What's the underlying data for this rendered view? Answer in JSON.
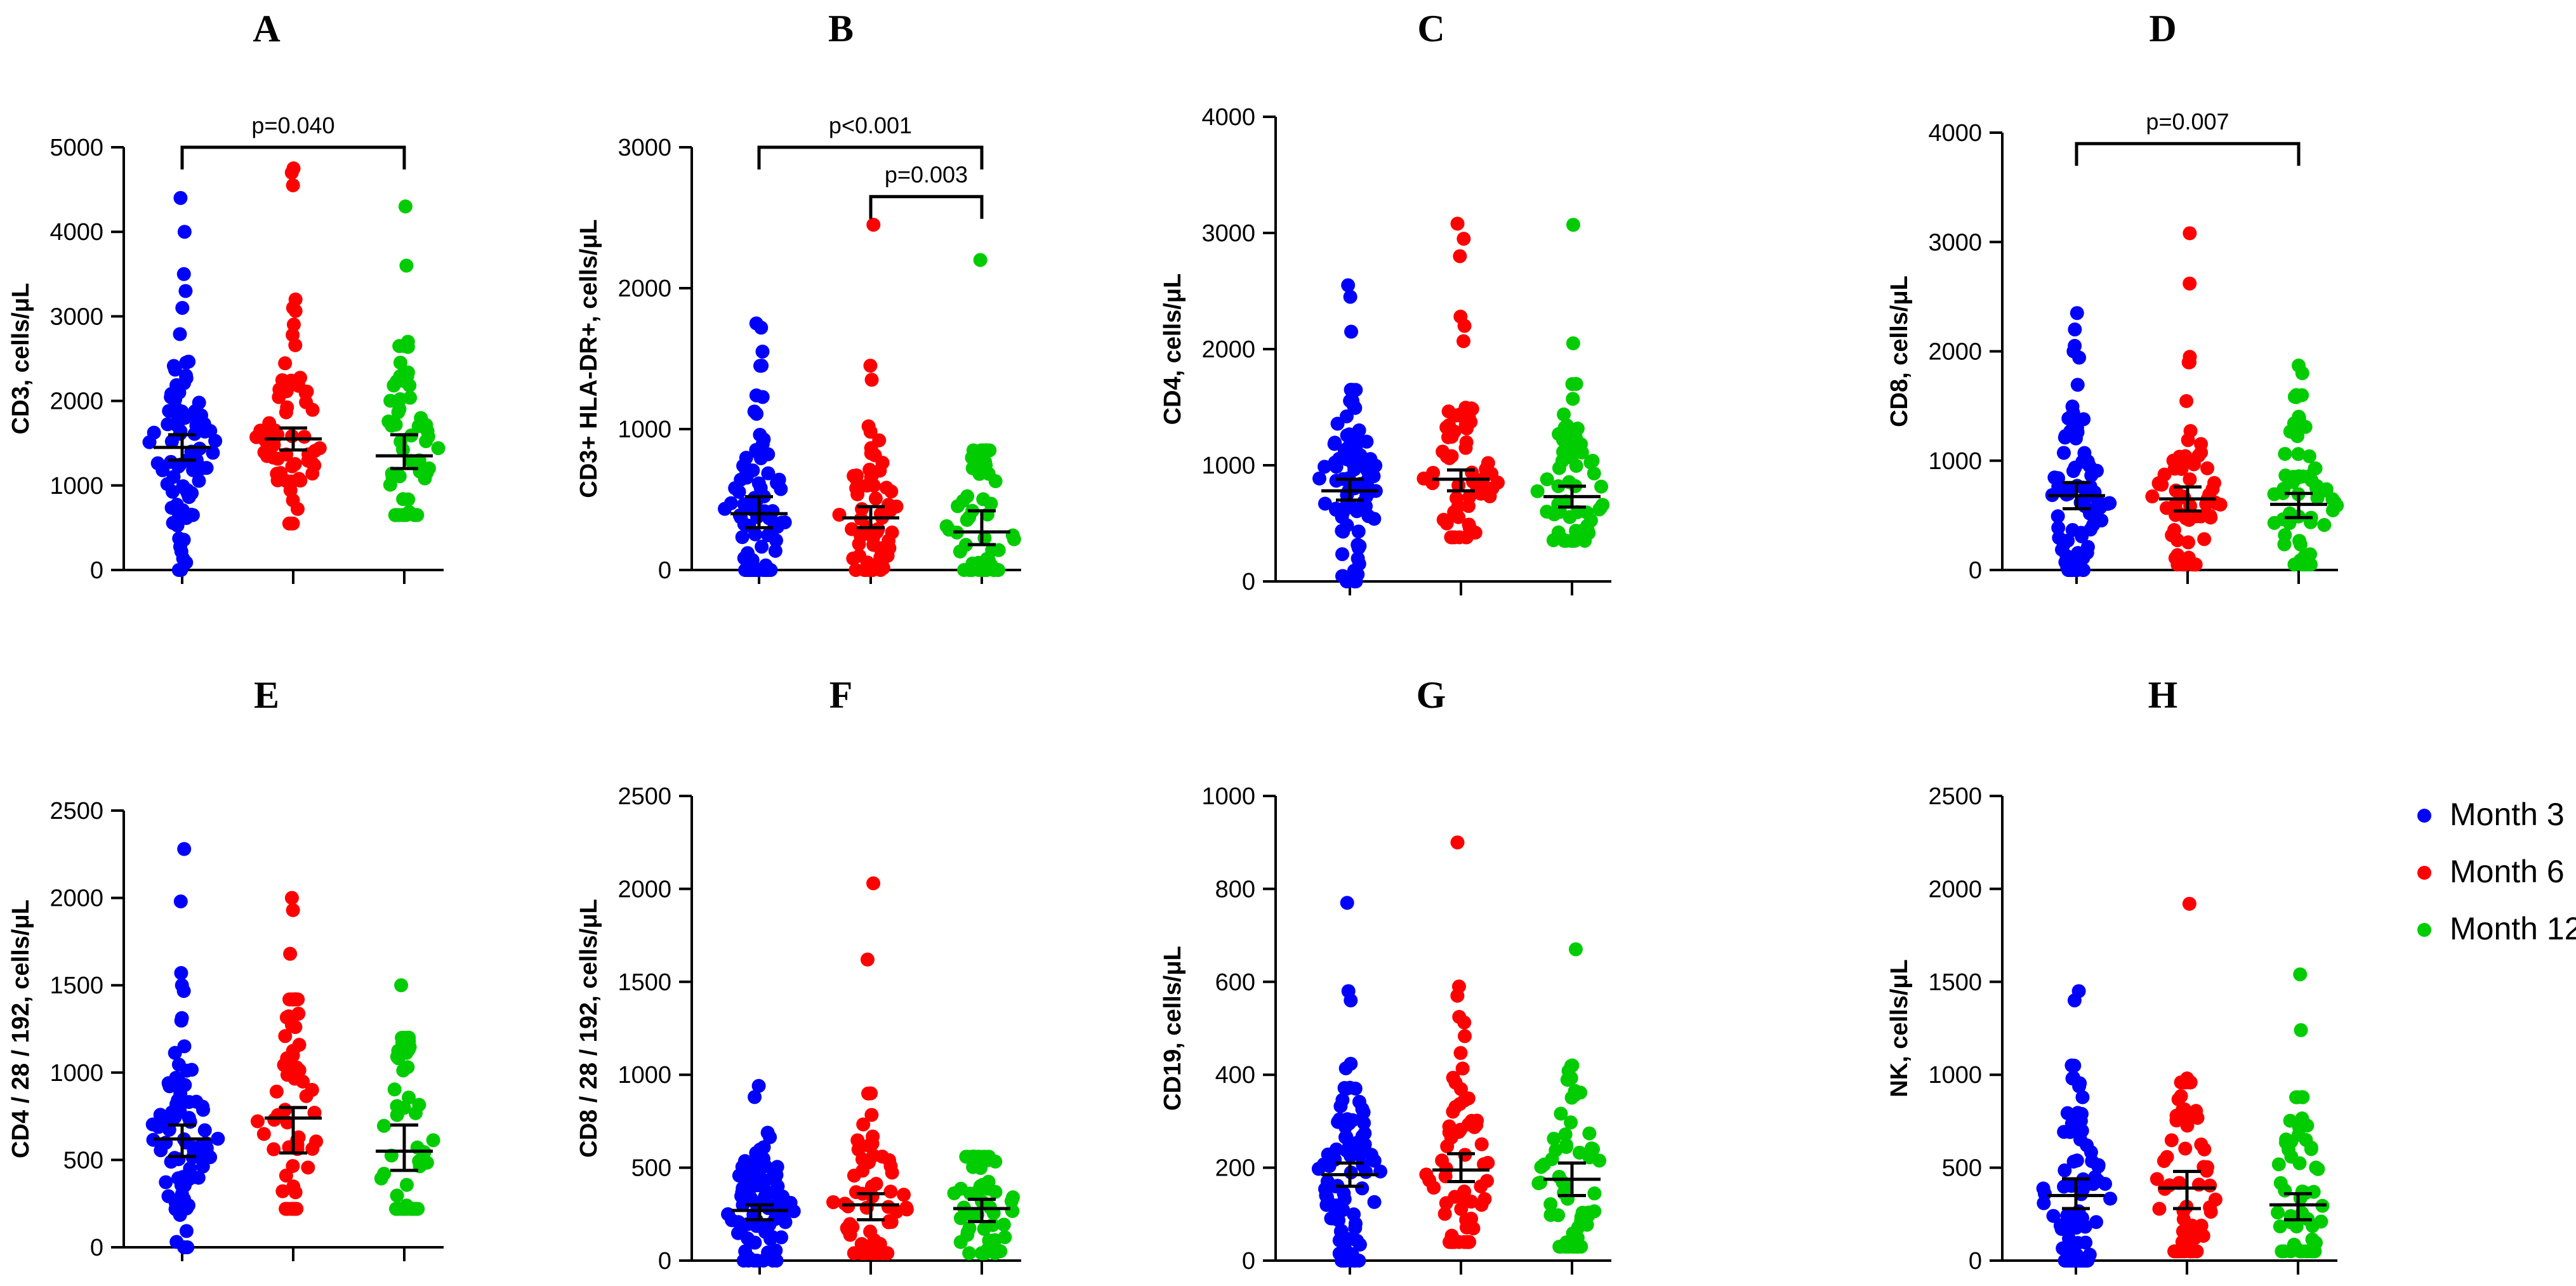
{
  "colors": {
    "Month 3": "#0000ff",
    "Month 6": "#ff0000",
    "Month 12": "#00cc00"
  },
  "legend": [
    {
      "label": "Month 3",
      "color": "#0000ff"
    },
    {
      "label": "Month 6",
      "color": "#ff0000"
    },
    {
      "label": "Month 12",
      "color": "#00cc00"
    }
  ],
  "chart_data": [
    {
      "panel": "A",
      "type": "scatter",
      "ylabel": "CD3, cells/μL",
      "ylim": [
        0,
        5000
      ],
      "yticks": [
        0,
        1000,
        2000,
        3000,
        4000,
        5000
      ],
      "categories": [
        "Month 3",
        "Month 6",
        "Month 12"
      ],
      "series": [
        {
          "name": "Month 3",
          "n": 85,
          "median": 1450,
          "ci": [
            1300,
            1600
          ],
          "range": [
            0,
            4400
          ],
          "outliers": [
            4400,
            4000,
            3500,
            3300,
            3100
          ]
        },
        {
          "name": "Month 6",
          "n": 65,
          "median": 1550,
          "ci": [
            1420,
            1680
          ],
          "range": [
            550,
            4750
          ],
          "outliers": [
            4750,
            4700,
            4550,
            3200,
            3100
          ]
        },
        {
          "name": "Month 12",
          "n": 60,
          "median": 1350,
          "ci": [
            1200,
            1600
          ],
          "range": [
            650,
            4300
          ],
          "outliers": [
            4300,
            3600,
            2700,
            2650
          ]
        }
      ],
      "annotations": [
        {
          "text": "p=0.040",
          "from": 0,
          "to": 2,
          "y": 5000
        }
      ]
    },
    {
      "panel": "B",
      "type": "scatter",
      "ylabel": "CD3+ HLA-DR+, cells/μL",
      "ylim": [
        0,
        3000
      ],
      "yticks": [
        0,
        1000,
        2000,
        3000
      ],
      "categories": [
        "Month 3",
        "Month 6",
        "Month 12"
      ],
      "series": [
        {
          "name": "Month 3",
          "n": 85,
          "median": 400,
          "ci": [
            300,
            520
          ],
          "range": [
            0,
            1750
          ],
          "outliers": [
            1750,
            1720,
            1550,
            1450
          ]
        },
        {
          "name": "Month 6",
          "n": 65,
          "median": 370,
          "ci": [
            300,
            450
          ],
          "range": [
            0,
            2450
          ],
          "outliers": [
            2450,
            1450,
            1350
          ]
        },
        {
          "name": "Month 12",
          "n": 60,
          "median": 270,
          "ci": [
            180,
            420
          ],
          "range": [
            0,
            2200
          ],
          "outliers": [
            2200,
            850
          ]
        }
      ],
      "annotations": [
        {
          "text": "p<0.001",
          "from": 0,
          "to": 2,
          "y": 3000
        },
        {
          "text": "p=0.003",
          "from": 1,
          "to": 2,
          "y": 2650
        }
      ]
    },
    {
      "panel": "C",
      "type": "scatter",
      "ylabel": "CD4, cells/μL",
      "ylim": [
        0,
        4000
      ],
      "yticks": [
        0,
        1000,
        2000,
        3000,
        4000
      ],
      "categories": [
        "Month 3",
        "Month 6",
        "Month 12"
      ],
      "series": [
        {
          "name": "Month 3",
          "n": 85,
          "median": 780,
          "ci": [
            700,
            880
          ],
          "range": [
            0,
            2550
          ],
          "outliers": [
            2550,
            2450,
            2150,
            1650
          ]
        },
        {
          "name": "Month 6",
          "n": 65,
          "median": 880,
          "ci": [
            780,
            960
          ],
          "range": [
            380,
            3080
          ],
          "outliers": [
            3080,
            2950,
            2800,
            2280,
            2200
          ]
        },
        {
          "name": "Month 12",
          "n": 60,
          "median": 730,
          "ci": [
            640,
            820
          ],
          "range": [
            350,
            3070
          ],
          "outliers": [
            3070,
            2050,
            1700
          ]
        }
      ],
      "annotations": []
    },
    {
      "panel": "D",
      "type": "scatter",
      "ylabel": "CD8, cells/μL",
      "ylim": [
        0,
        4000
      ],
      "yticks": [
        0,
        1000,
        2000,
        3000,
        4000
      ],
      "categories": [
        "Month 3",
        "Month 6",
        "Month 12"
      ],
      "series": [
        {
          "name": "Month 3",
          "n": 85,
          "median": 680,
          "ci": [
            560,
            800
          ],
          "range": [
            0,
            2350
          ],
          "outliers": [
            2350,
            2200,
            2050,
            2000
          ]
        },
        {
          "name": "Month 6",
          "n": 65,
          "median": 650,
          "ci": [
            540,
            760
          ],
          "range": [
            50,
            3080
          ],
          "outliers": [
            3080,
            2620,
            1950,
            1900
          ]
        },
        {
          "name": "Month 12",
          "n": 60,
          "median": 600,
          "ci": [
            480,
            700
          ],
          "range": [
            50,
            1870
          ],
          "outliers": [
            1870,
            1800,
            1600
          ]
        }
      ],
      "annotations": [
        {
          "text": "p=0.007",
          "from": 0,
          "to": 2,
          "y": 3900
        }
      ]
    },
    {
      "panel": "E",
      "type": "scatter",
      "ylabel": "CD4 / 28 / 192, cells/μL",
      "ylim": [
        0,
        2500
      ],
      "yticks": [
        0,
        500,
        1000,
        1500,
        2000,
        2500
      ],
      "categories": [
        "Month 3",
        "Month 6",
        "Month 12"
      ],
      "series": [
        {
          "name": "Month 3",
          "n": 85,
          "median": 620,
          "ci": [
            520,
            700
          ],
          "range": [
            0,
            2280
          ],
          "outliers": [
            2280,
            1980,
            1570,
            1500
          ]
        },
        {
          "name": "Month 6",
          "n": 65,
          "median": 740,
          "ci": [
            540,
            800
          ],
          "range": [
            220,
            2000
          ],
          "outliers": [
            2000,
            1930,
            1680,
            1420
          ]
        },
        {
          "name": "Month 12",
          "n": 60,
          "median": 550,
          "ci": [
            440,
            700
          ],
          "range": [
            220,
            1500
          ],
          "outliers": [
            1500,
            1200
          ]
        }
      ],
      "annotations": []
    },
    {
      "panel": "F",
      "type": "scatter",
      "ylabel": "CD8 / 28 / 192, cells/μL",
      "ylim": [
        0,
        2500
      ],
      "yticks": [
        0,
        500,
        1000,
        1500,
        2000,
        2500
      ],
      "categories": [
        "Month 3",
        "Month 6",
        "Month 12"
      ],
      "series": [
        {
          "name": "Month 3",
          "n": 85,
          "median": 270,
          "ci": [
            220,
            300
          ],
          "range": [
            0,
            940
          ],
          "outliers": [
            940,
            880
          ]
        },
        {
          "name": "Month 6",
          "n": 65,
          "median": 300,
          "ci": [
            220,
            360
          ],
          "range": [
            40,
            2030
          ],
          "outliers": [
            2030,
            1620,
            900
          ]
        },
        {
          "name": "Month 12",
          "n": 60,
          "median": 280,
          "ci": [
            210,
            330
          ],
          "range": [
            40,
            560
          ],
          "outliers": [
            560
          ]
        }
      ],
      "annotations": []
    },
    {
      "panel": "G",
      "type": "scatter",
      "ylabel": "CD19, cells/μL",
      "ylim": [
        0,
        1000
      ],
      "yticks": [
        0,
        200,
        400,
        600,
        800,
        1000
      ],
      "categories": [
        "Month 3",
        "Month 6",
        "Month 12"
      ],
      "series": [
        {
          "name": "Month 3",
          "n": 85,
          "median": 185,
          "ci": [
            160,
            210
          ],
          "range": [
            0,
            770
          ],
          "outliers": [
            770,
            580,
            560
          ]
        },
        {
          "name": "Month 6",
          "n": 65,
          "median": 195,
          "ci": [
            170,
            230
          ],
          "range": [
            40,
            900
          ],
          "outliers": [
            900,
            590,
            570
          ]
        },
        {
          "name": "Month 12",
          "n": 60,
          "median": 175,
          "ci": [
            140,
            210
          ],
          "range": [
            30,
            670
          ],
          "outliers": [
            670,
            420
          ]
        }
      ],
      "annotations": []
    },
    {
      "panel": "H",
      "type": "scatter",
      "ylabel": "NK, cells/μL",
      "ylim": [
        0,
        2500
      ],
      "yticks": [
        0,
        500,
        1000,
        1500,
        2000,
        2500
      ],
      "categories": [
        "Month 3",
        "Month 6",
        "Month 12"
      ],
      "series": [
        {
          "name": "Month 3",
          "n": 85,
          "median": 350,
          "ci": [
            280,
            440
          ],
          "range": [
            0,
            1450
          ],
          "outliers": [
            1450,
            1400,
            1050
          ]
        },
        {
          "name": "Month 6",
          "n": 65,
          "median": 390,
          "ci": [
            280,
            480
          ],
          "range": [
            50,
            1920
          ],
          "outliers": [
            1920,
            980,
            960
          ]
        },
        {
          "name": "Month 12",
          "n": 60,
          "median": 300,
          "ci": [
            220,
            360
          ],
          "range": [
            50,
            1540
          ],
          "outliers": [
            1540,
            1240,
            880
          ]
        }
      ],
      "annotations": []
    }
  ]
}
